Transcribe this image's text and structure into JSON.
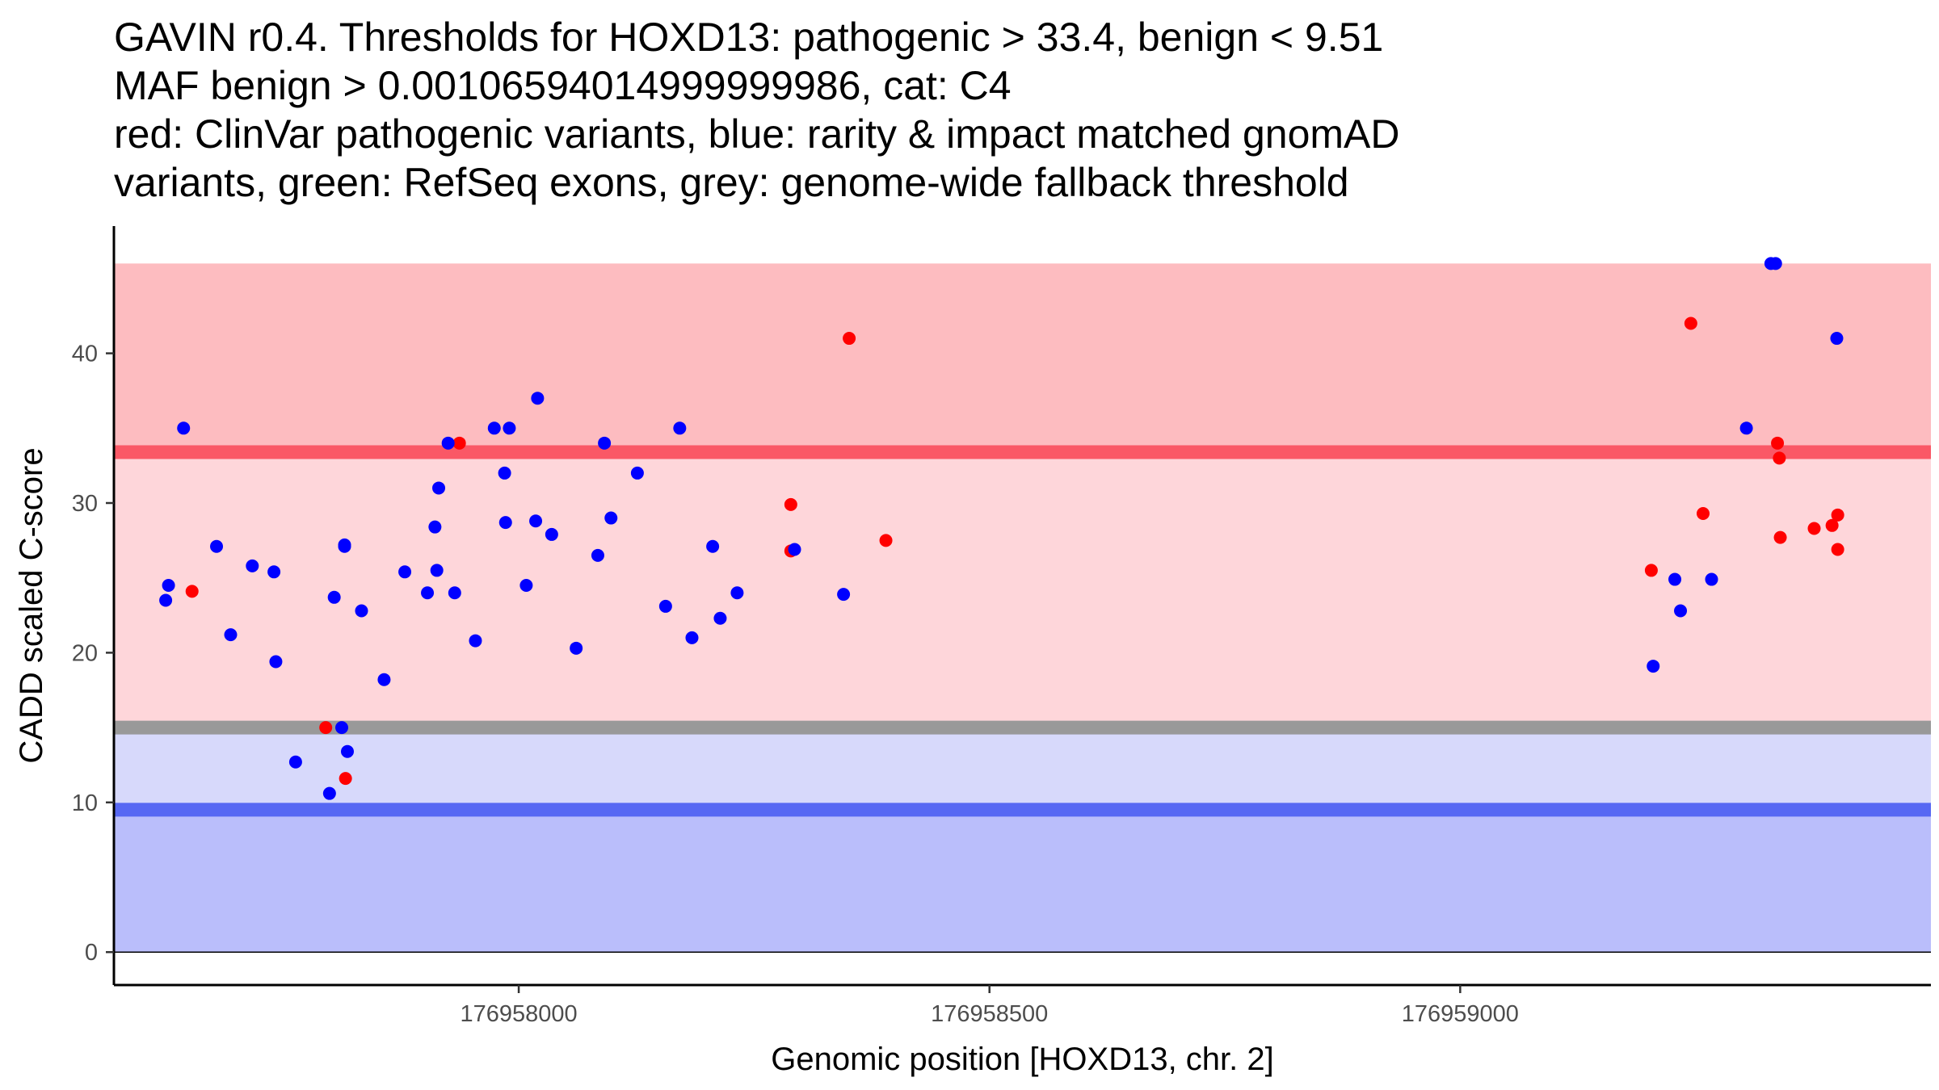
{
  "title_lines": [
    "GAVIN r0.4. Thresholds for HOXD13: pathogenic > 33.4, benign < 9.51",
    "MAF benign > 0.00106594014999999986, cat: C4",
    "red: ClinVar pathogenic variants, blue: rarity & impact matched gnomAD",
    "variants, green: RefSeq exons, grey: genome-wide fallback threshold"
  ],
  "chart_data": {
    "type": "scatter",
    "xlabel": "Genomic position [HOXD13, chr. 2]",
    "ylabel": "CADD scaled C-score",
    "xlim": [
      176957570,
      176959500
    ],
    "ylim": [
      -2.2,
      48.5
    ],
    "x_ticks": [
      176958000,
      176958500,
      176959000
    ],
    "x_tick_labels": [
      "176958000",
      "176958500",
      "176959000"
    ],
    "y_ticks": [
      0,
      10,
      20,
      30,
      40
    ],
    "y_tick_labels": [
      "0",
      "10",
      "20",
      "30",
      "40"
    ],
    "bands": [
      {
        "name": "pathogenic-zone",
        "from": 33.4,
        "to": 46,
        "color": "#FDBCC0"
      },
      {
        "name": "intermediate-pathogenic-zone",
        "from": 15.0,
        "to": 33.4,
        "color": "#FED6DA"
      },
      {
        "name": "intermediate-benign-zone",
        "from": 9.51,
        "to": 15.0,
        "color": "#D7D9FB"
      },
      {
        "name": "benign-zone",
        "from": 0,
        "to": 9.51,
        "color": "#BABEFB"
      }
    ],
    "threshold_lines": [
      {
        "name": "pathogenic-threshold",
        "value": 33.4,
        "color": "#FA5866"
      },
      {
        "name": "fallback-threshold",
        "value": 15.0,
        "color": "#999999"
      },
      {
        "name": "benign-threshold",
        "value": 9.51,
        "color": "#5768F3"
      }
    ],
    "series": [
      {
        "name": "ClinVar pathogenic variants",
        "color": "#FF0000",
        "x": [
          176957653,
          176957795,
          176957816,
          176957937,
          176958289,
          176958289,
          176958351,
          176958390,
          176959203,
          176959245,
          176959258,
          176959337,
          176959339,
          176959340,
          176959376,
          176959395,
          176959401,
          176959401
        ],
        "y": [
          24.1,
          15.0,
          11.6,
          34.0,
          29.9,
          26.8,
          41.0,
          27.5,
          25.5,
          42.0,
          29.3,
          34.0,
          33.0,
          27.7,
          28.3,
          28.5,
          29.2,
          26.9
        ]
      },
      {
        "name": "gnomAD rarity & impact matched variants",
        "color": "#0000FF",
        "x": [
          176957625,
          176957628,
          176957644,
          176957694,
          176957679,
          176957717,
          176957740,
          176957742,
          176957763,
          176957799,
          176957804,
          176957812,
          176957815,
          176957815,
          176957818,
          176957833,
          176957857,
          176957879,
          176957903,
          176957911,
          176957913,
          176957915,
          176957925,
          176957932,
          176957954,
          176957974,
          176957985,
          176957986,
          176957990,
          176958008,
          176958018,
          176958020,
          176958035,
          176958061,
          176958084,
          176958091,
          176958098,
          176958126,
          176958156,
          176958171,
          176958184,
          176958206,
          176958214,
          176958232,
          176958293,
          176958345,
          176959205,
          176959228,
          176959234,
          176959267,
          176959304,
          176959330,
          176959335,
          176959400
        ],
        "y": [
          23.5,
          24.5,
          35.0,
          21.2,
          27.1,
          25.8,
          25.4,
          19.4,
          12.7,
          10.6,
          23.7,
          15.0,
          27.1,
          27.2,
          13.4,
          22.8,
          18.2,
          25.4,
          24.0,
          28.4,
          25.5,
          31.0,
          34.0,
          24.0,
          20.8,
          35.0,
          32.0,
          28.7,
          35.0,
          24.5,
          28.8,
          37.0,
          27.9,
          20.3,
          26.5,
          34.0,
          29.0,
          32.0,
          23.1,
          35.0,
          21.0,
          27.1,
          22.3,
          24.0,
          26.9,
          23.9,
          19.1,
          24.9,
          22.8,
          24.9,
          35.0,
          46.0,
          46.0,
          41.0
        ]
      }
    ]
  }
}
